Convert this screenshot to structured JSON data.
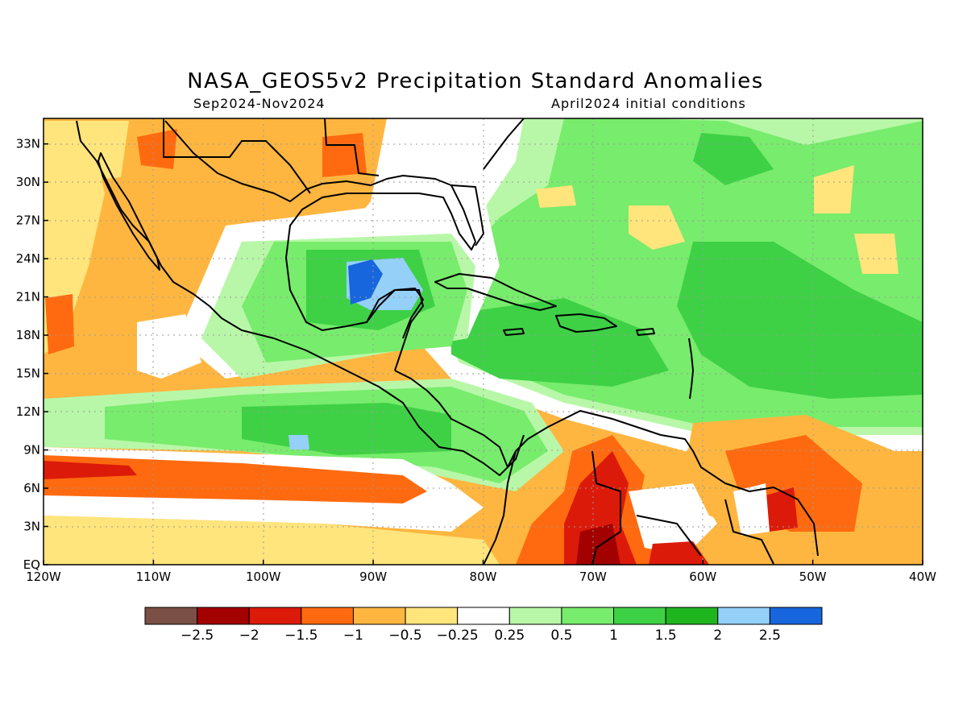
{
  "title": "NASA_GEOS5v2 Precipitation Standard Anomalies",
  "subtitle_left": "Sep2024-Nov2024",
  "subtitle_right": "April2024 initial conditions",
  "map": {
    "lon_range": [
      -120,
      -40
    ],
    "lat_range": [
      0,
      35
    ],
    "lat_ticks": [
      {
        "value": 0,
        "label": "EQ"
      },
      {
        "value": 3,
        "label": "3N"
      },
      {
        "value": 6,
        "label": "6N"
      },
      {
        "value": 9,
        "label": "9N"
      },
      {
        "value": 12,
        "label": "12N"
      },
      {
        "value": 15,
        "label": "15N"
      },
      {
        "value": 18,
        "label": "18N"
      },
      {
        "value": 21,
        "label": "21N"
      },
      {
        "value": 24,
        "label": "24N"
      },
      {
        "value": 27,
        "label": "27N"
      },
      {
        "value": 30,
        "label": "30N"
      },
      {
        "value": 33,
        "label": "33N"
      }
    ],
    "lon_ticks": [
      {
        "value": -120,
        "label": "120W"
      },
      {
        "value": -110,
        "label": "110W"
      },
      {
        "value": -100,
        "label": "100W"
      },
      {
        "value": -90,
        "label": "90W"
      },
      {
        "value": -80,
        "label": "80W"
      },
      {
        "value": -70,
        "label": "70W"
      },
      {
        "value": -60,
        "label": "60W"
      },
      {
        "value": -50,
        "label": "50W"
      },
      {
        "value": -40,
        "label": "40W"
      }
    ],
    "gridlines": true
  },
  "colorbar": {
    "colors": [
      "#7a4f45",
      "#a30000",
      "#dc1a0a",
      "#ff6a10",
      "#ffb640",
      "#ffe57c",
      "#ffffff",
      "#b8f7a8",
      "#78ec6c",
      "#3ed146",
      "#1fb51f",
      "#95d0f8",
      "#1766de"
    ],
    "labels": [
      "-2.5",
      "-2",
      "-1.5",
      "-1",
      "-0.5",
      "-0.25",
      "0.25",
      "0.5",
      "1",
      "1.5",
      "2",
      "2.5"
    ]
  },
  "palette": {
    "lightorange": "#ffb640",
    "yellow": "#ffe57c",
    "orange": "#ff6a10",
    "red": "#dc1a0a",
    "darkred": "#a30000",
    "white": "#ffffff",
    "lightgreen": "#b8f7a8",
    "green": "#78ec6c",
    "midgreen": "#3ed146",
    "darkgreen": "#1fb51f",
    "lightblue": "#95d0f8",
    "blue": "#1766de"
  }
}
